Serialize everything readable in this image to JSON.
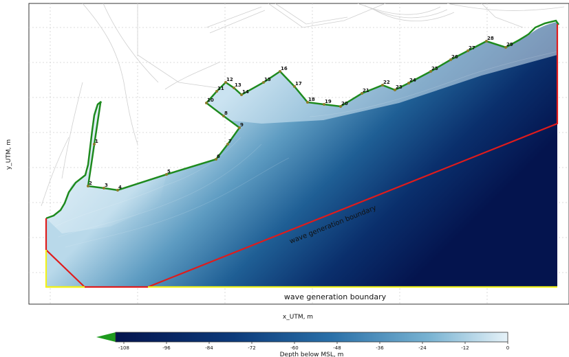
{
  "axes": {
    "xlabel": "x_UTM, m",
    "ylabel": "y_UTM, m"
  },
  "annotations": {
    "diagonal_boundary": "wave generation boundary",
    "bottom_boundary": "wave generation boundary"
  },
  "colorbar": {
    "label": "Depth below MSL, m",
    "ticks": [
      "-108",
      "-96",
      "-84",
      "-72",
      "-60",
      "-48",
      "-36",
      "-24",
      "-12",
      "0"
    ],
    "color_shallow": "#dff0f8",
    "color_deep": "#04144e",
    "extend_color": "#1e9b1e"
  },
  "shoreline_points": [
    "1",
    "2",
    "3",
    "4",
    "5",
    "6",
    "7",
    "8",
    "9",
    "10",
    "11",
    "12",
    "13",
    "14",
    "15",
    "16",
    "17",
    "18",
    "19",
    "20",
    "21",
    "22",
    "23",
    "24",
    "25",
    "26",
    "27",
    "28",
    "29"
  ],
  "colors": {
    "shoreline": "#1e8a1e",
    "offshore_boundary": "#e01b1b",
    "bottom_boundary": "#f2f21a",
    "grid": "#cfcfcf",
    "point": "#8a7a2a"
  }
}
